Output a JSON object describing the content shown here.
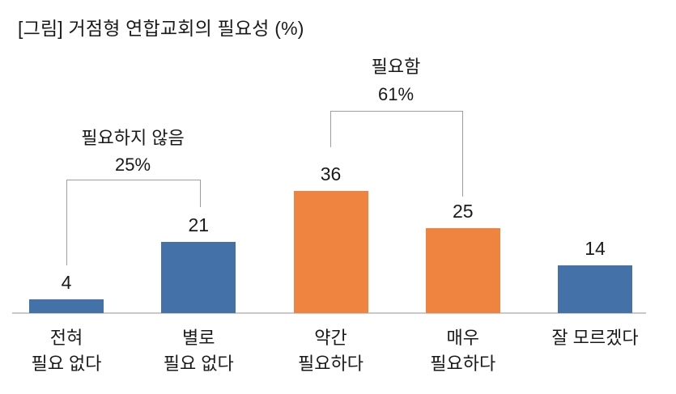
{
  "chart_data": {
    "type": "bar",
    "title": "[그림] 거점형 연합교회의 필요성 (%)",
    "unit": "%",
    "categories": [
      [
        "전혀",
        "필요 없다"
      ],
      [
        "별로",
        "필요 없다"
      ],
      [
        "약간",
        "필요하다"
      ],
      [
        "매우",
        "필요하다"
      ],
      [
        "잘 모르겠다"
      ]
    ],
    "values": [
      4,
      21,
      36,
      25,
      14
    ],
    "bar_colors": [
      "#4471A8",
      "#4471A8",
      "#EF8440",
      "#EF8440",
      "#4471A8"
    ],
    "value_labels_shown": true,
    "yaxis": {
      "visible": false,
      "ylim": [
        0,
        40
      ],
      "grid": false
    },
    "legend": "none",
    "annotations": [
      {
        "label": "필요하지 않음",
        "percent": "25%",
        "spans_categories": [
          0,
          1
        ]
      },
      {
        "label": "필요함",
        "percent": "61%",
        "spans_categories": [
          2,
          3
        ]
      }
    ]
  },
  "colors": {
    "background": "#FFFFFF",
    "text": "#1A1A1A",
    "bar_blue": "#4471A8",
    "bar_orange": "#EF8440",
    "axis_line": "#C9C9C9",
    "bracket_line": "#9E9E9E"
  }
}
